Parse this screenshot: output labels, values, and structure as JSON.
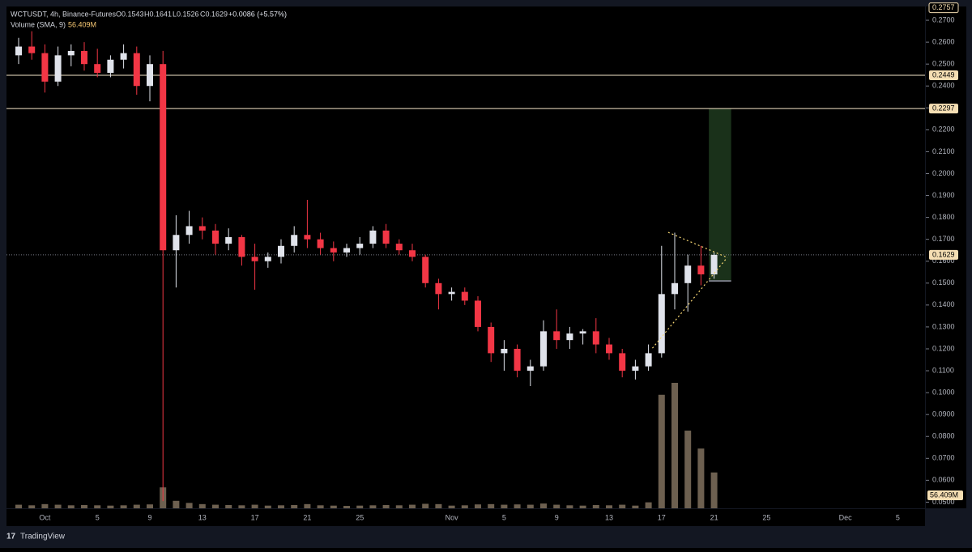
{
  "chart_data": {
    "type": "candlestick",
    "title": "WCTUSDT, 4h, Binance-Futures",
    "ohlc_labels": [
      "O0.1543",
      "H0.1641",
      "L0.1526",
      "C0.1629"
    ],
    "change": "+0.0086 (+5.57%)",
    "volume_title": "Volume (SMA, 9)",
    "volume_value": "56.409M",
    "brand": "TradingView",
    "categories": [
      null,
      null,
      "Oct",
      null,
      null,
      null,
      "5",
      null,
      null,
      null,
      "9",
      null,
      null,
      null,
      "13",
      null,
      null,
      null,
      "17",
      null,
      null,
      null,
      "21",
      null,
      null,
      null,
      "25",
      null,
      null,
      null,
      null,
      null,
      null,
      "Nov",
      null,
      null,
      null,
      "5",
      null,
      null,
      null,
      "9",
      null,
      null,
      null,
      "13",
      null,
      null,
      null,
      "17",
      null,
      null,
      null,
      "21",
      null,
      null,
      null,
      "25",
      null,
      null,
      null,
      null,
      null,
      "Dec",
      null,
      null,
      null,
      "5",
      null,
      null
    ],
    "open": [
      0.254,
      0.258,
      0.255,
      0.242,
      0.254,
      0.256,
      0.25,
      0.246,
      0.252,
      0.255,
      0.24,
      0.25,
      0.165,
      0.172,
      0.176,
      0.174,
      0.168,
      0.171,
      0.162,
      0.16,
      0.162,
      0.167,
      0.172,
      0.17,
      0.166,
      0.164,
      0.166,
      0.168,
      0.174,
      0.168,
      0.165,
      0.162,
      0.15,
      0.145,
      0.146,
      0.142,
      0.13,
      0.118,
      0.12,
      0.11,
      0.112,
      0.128,
      0.124,
      0.127,
      0.128,
      0.122,
      0.118,
      0.11,
      0.112,
      0.118,
      0.145,
      0.15,
      0.158,
      0.154,
      null,
      null,
      null,
      null,
      null,
      null,
      null,
      null,
      null,
      null,
      null,
      null,
      null,
      null,
      null,
      null
    ],
    "high": [
      0.262,
      0.265,
      0.259,
      0.258,
      0.259,
      0.26,
      0.257,
      0.254,
      0.259,
      0.258,
      0.254,
      0.256,
      0.181,
      0.183,
      0.18,
      0.177,
      0.175,
      0.172,
      0.168,
      0.164,
      0.17,
      0.176,
      0.188,
      0.173,
      0.169,
      0.168,
      0.171,
      0.176,
      0.177,
      0.17,
      0.168,
      0.163,
      0.152,
      0.148,
      0.148,
      0.144,
      0.132,
      0.124,
      0.122,
      0.115,
      0.133,
      0.138,
      0.13,
      0.129,
      0.134,
      0.125,
      0.12,
      0.115,
      0.122,
      0.167,
      0.173,
      0.163,
      0.167,
      0.164,
      null,
      null,
      null,
      null,
      null,
      null,
      null,
      null,
      null,
      null,
      null,
      null,
      null,
      null,
      null,
      null
    ],
    "low": [
      0.25,
      0.252,
      0.237,
      0.24,
      0.249,
      0.247,
      0.244,
      0.244,
      0.248,
      0.236,
      0.233,
      0.0505,
      0.148,
      0.168,
      0.17,
      0.163,
      0.165,
      0.158,
      0.147,
      0.157,
      0.159,
      0.164,
      0.166,
      0.163,
      0.16,
      0.162,
      0.163,
      0.166,
      0.166,
      0.163,
      0.16,
      0.148,
      0.138,
      0.142,
      0.14,
      0.128,
      0.114,
      0.11,
      0.107,
      0.103,
      0.11,
      0.12,
      0.12,
      0.122,
      0.118,
      0.115,
      0.107,
      0.106,
      0.11,
      0.116,
      0.138,
      0.137,
      0.149,
      0.152,
      null,
      null,
      null,
      null,
      null,
      null,
      null,
      null,
      null,
      null,
      null,
      null,
      null,
      null,
      null,
      null
    ],
    "close": [
      0.258,
      0.255,
      0.242,
      0.254,
      0.256,
      0.25,
      0.246,
      0.252,
      0.255,
      0.24,
      0.25,
      0.165,
      0.172,
      0.176,
      0.174,
      0.168,
      0.171,
      0.162,
      0.16,
      0.162,
      0.167,
      0.172,
      0.17,
      0.166,
      0.164,
      0.166,
      0.168,
      0.174,
      0.168,
      0.165,
      0.162,
      0.15,
      0.145,
      0.146,
      0.142,
      0.13,
      0.118,
      0.12,
      0.11,
      0.112,
      0.128,
      0.124,
      0.127,
      0.128,
      0.122,
      0.118,
      0.11,
      0.112,
      0.118,
      0.145,
      0.15,
      0.158,
      0.154,
      0.1629,
      null,
      null,
      null,
      null,
      null,
      null,
      null,
      null,
      null,
      null,
      null,
      null,
      null,
      null,
      null,
      null
    ],
    "volume": [
      12,
      10,
      14,
      12,
      10,
      11,
      10,
      9,
      10,
      12,
      13,
      70,
      25,
      18,
      14,
      12,
      11,
      10,
      12,
      9,
      10,
      11,
      14,
      10,
      9,
      8,
      9,
      10,
      11,
      10,
      12,
      15,
      14,
      9,
      10,
      13,
      14,
      12,
      13,
      12,
      16,
      12,
      10,
      9,
      11,
      10,
      12,
      9,
      20,
      380,
      420,
      260,
      200,
      120,
      null,
      null,
      null,
      null,
      null,
      null,
      null,
      null,
      null,
      null,
      null,
      null,
      null,
      null,
      null,
      null
    ],
    "up_color": "#e0e3eb",
    "down_color": "#f23645",
    "volume_color": "#6d6050",
    "ylim": [
      0.0472,
      0.2763
    ],
    "yticks": [
      {
        "value": 0.05,
        "label": "0.0500"
      },
      {
        "value": 0.06,
        "label": "0.0600"
      },
      {
        "value": 0.07,
        "label": "0.0700"
      },
      {
        "value": 0.08,
        "label": "0.0800"
      },
      {
        "value": 0.09,
        "label": "0.0900"
      },
      {
        "value": 0.1,
        "label": "0.1000"
      },
      {
        "value": 0.11,
        "label": "0.1100"
      },
      {
        "value": 0.12,
        "label": "0.1200"
      },
      {
        "value": 0.13,
        "label": "0.1300"
      },
      {
        "value": 0.14,
        "label": "0.1400"
      },
      {
        "value": 0.15,
        "label": "0.1500"
      },
      {
        "value": 0.16,
        "label": "0.1600"
      },
      {
        "value": 0.17,
        "label": "0.1700"
      },
      {
        "value": 0.18,
        "label": "0.1800"
      },
      {
        "value": 0.19,
        "label": "0.1900"
      },
      {
        "value": 0.2,
        "label": "0.2000"
      },
      {
        "value": 0.21,
        "label": "0.2100"
      },
      {
        "value": 0.22,
        "label": "0.2200"
      },
      {
        "value": 0.23,
        "label": "0.2300"
      },
      {
        "value": 0.24,
        "label": "0.2400"
      },
      {
        "value": 0.25,
        "label": "0.2500"
      },
      {
        "value": 0.26,
        "label": "0.2600"
      },
      {
        "value": 0.27,
        "label": "0.2700"
      }
    ],
    "high_marker": 0.2757,
    "price_lines": [
      0.2449,
      0.2297
    ],
    "last_price": 0.1629,
    "target_box": {
      "x": [
        52.6,
        54.3
      ],
      "y": [
        0.151,
        0.2297
      ]
    },
    "pattern_lines": [
      {
        "x": [
          49.5,
          54.0
        ],
        "y": [
          0.1732,
          0.1617
        ]
      },
      {
        "x": [
          48.3,
          54.0
        ],
        "y": [
          0.1203,
          0.1617
        ]
      }
    ]
  }
}
